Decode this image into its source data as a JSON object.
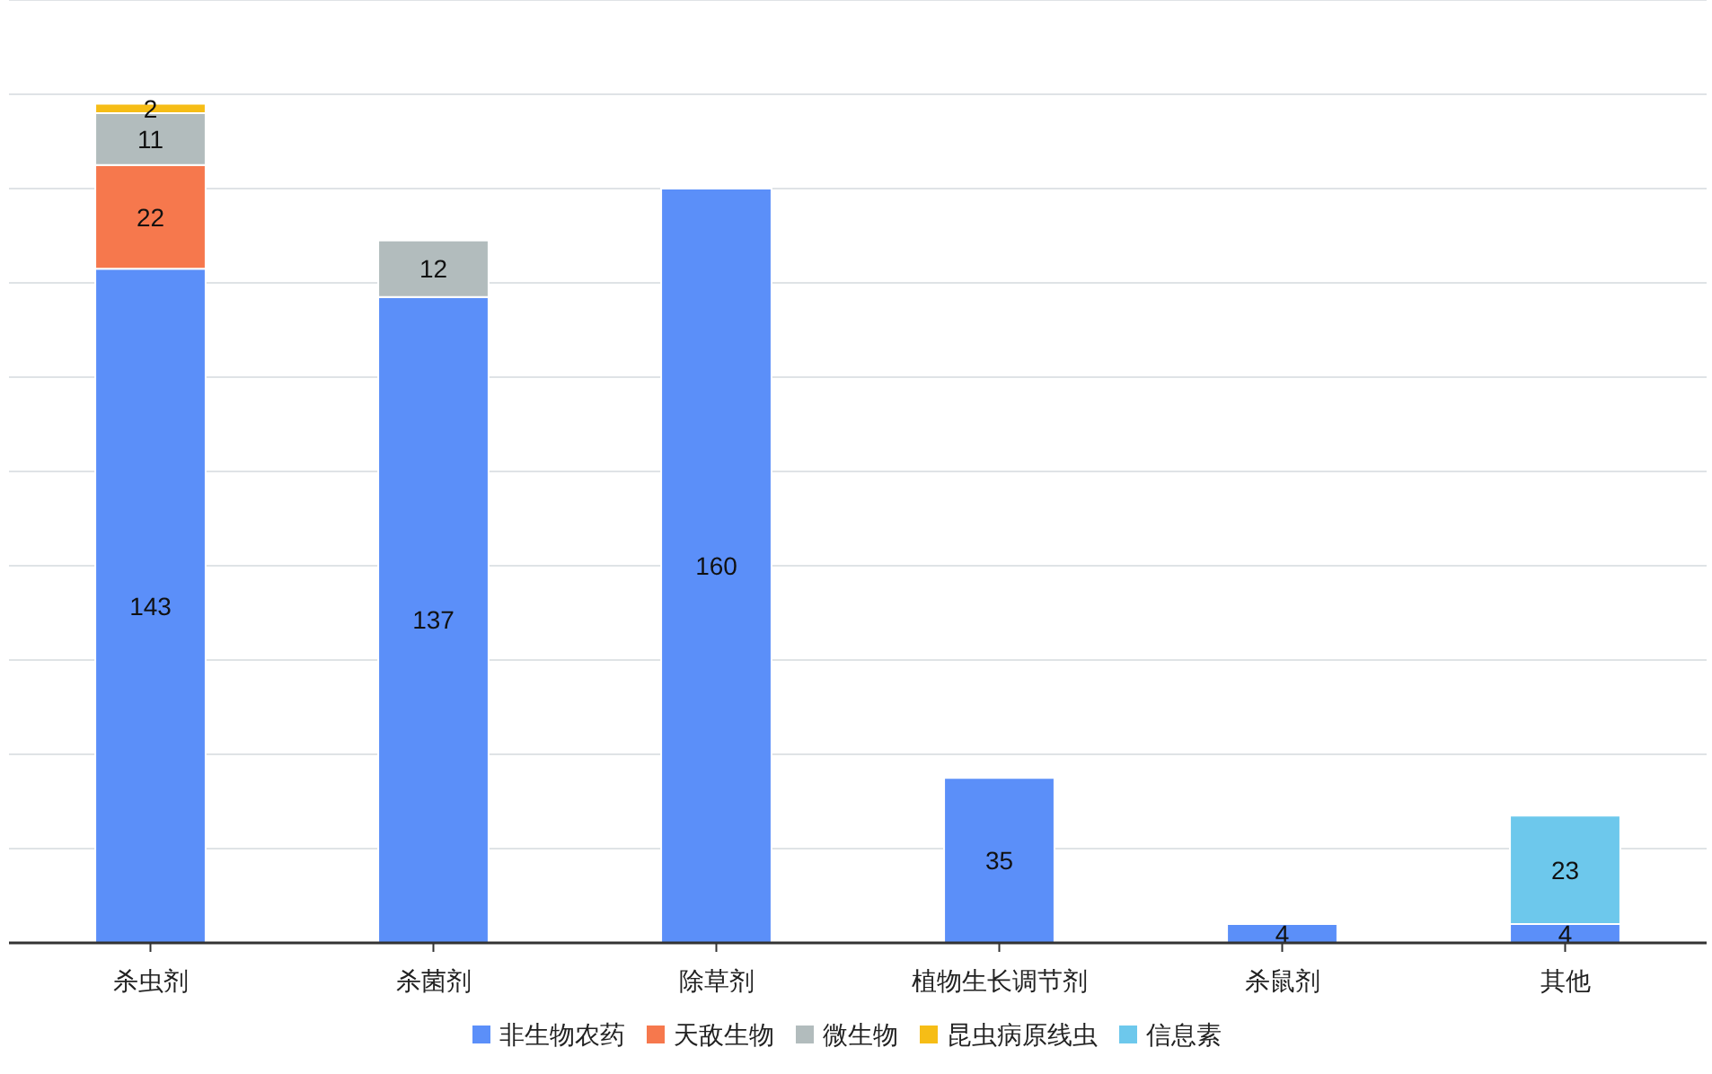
{
  "chart_data": {
    "type": "bar",
    "stacked": true,
    "data_labels": true,
    "legend": "bottom",
    "grid": "y",
    "tick_labels": "x",
    "categories": [
      "杀虫剂",
      "杀菌剂",
      "除草剂",
      "植物生长调节剂",
      "杀鼠剂",
      "其他"
    ],
    "ylim": [
      0,
      200
    ],
    "yticks": [
      {
        "value": 0,
        "label": null
      },
      {
        "value": 20,
        "label": null
      },
      {
        "value": 40,
        "label": null
      },
      {
        "value": 60,
        "label": null
      },
      {
        "value": 80,
        "label": null
      },
      {
        "value": 100,
        "label": null
      },
      {
        "value": 120,
        "label": null
      },
      {
        "value": 140,
        "label": null
      },
      {
        "value": 160,
        "label": null
      },
      {
        "value": 180,
        "label": null
      },
      {
        "value": 200,
        "label": null
      }
    ],
    "series": [
      {
        "name": "非生物农药",
        "color": "#5b8ff9",
        "values": [
          143,
          137,
          160,
          35,
          4,
          4
        ]
      },
      {
        "name": "天敌生物",
        "color": "#f6784d",
        "values": [
          22,
          null,
          null,
          null,
          null,
          null
        ]
      },
      {
        "name": "微生物",
        "color": "#b2bcbd",
        "values": [
          11,
          12,
          null,
          null,
          null,
          null
        ]
      },
      {
        "name": "昆虫病原线虫",
        "color": "#f6bd16",
        "values": [
          2,
          null,
          null,
          null,
          null,
          null
        ]
      },
      {
        "name": "信息素",
        "color": "#6dc8ec",
        "values": [
          null,
          null,
          null,
          null,
          null,
          23
        ]
      }
    ]
  }
}
